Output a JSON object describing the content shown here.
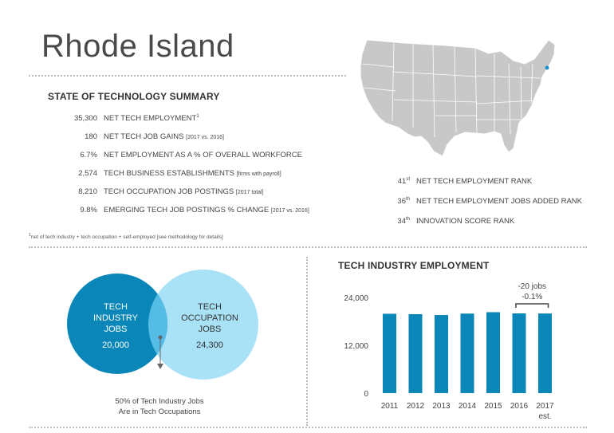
{
  "page": {
    "title": "Rhode Island"
  },
  "summary": {
    "heading": "STATE OF TECHNOLOGY SUMMARY",
    "rows": [
      {
        "value": "35,300",
        "label": "NET TECH EMPLOYMENT",
        "sup": "1",
        "note": ""
      },
      {
        "value": "180",
        "label": "NET TECH JOB GAINS",
        "sup": "",
        "note": "[2017 vs. 2016]"
      },
      {
        "value": "6.7%",
        "label": "NET EMPLOYMENT AS A % OF OVERALL WORKFORCE",
        "sup": "",
        "note": ""
      },
      {
        "value": "2,574",
        "label": "TECH BUSINESS ESTABLISHMENTS",
        "sup": "",
        "note": "[firms with payroll]"
      },
      {
        "value": "8,210",
        "label": "TECH OCCUPATION JOB POSTINGS",
        "sup": "",
        "note": "[2017 total]"
      },
      {
        "value": "9.8%",
        "label": "EMERGING TECH JOB POSTINGS % CHANGE",
        "sup": "",
        "note": "[2017 vs. 2016]"
      }
    ],
    "footnote_sup": "1",
    "footnote": "net of tech industry + tech occupation + self-employed [see methodology for details]"
  },
  "ranks": [
    {
      "num": "41",
      "suffix": "st",
      "label": "NET TECH EMPLOYMENT RANK"
    },
    {
      "num": "36",
      "suffix": "th",
      "label": "NET TECH EMPLOYMENT JOBS ADDED RANK"
    },
    {
      "num": "34",
      "suffix": "th",
      "label": "INNOVATION SCORE RANK"
    }
  ],
  "venn": {
    "left": {
      "line1": "TECH",
      "line2": "INDUSTRY",
      "line3": "JOBS",
      "value": "20,000",
      "color": "#0a86b8"
    },
    "right": {
      "line1": "TECH",
      "line2": "OCCUPATION",
      "line3": "JOBS",
      "value": "24,300",
      "color": "#a9e2f7"
    },
    "overlap_color": "#55bce6",
    "note_line1": "50% of Tech Industry Jobs",
    "note_line2": "Are in Tech Occupations"
  },
  "map": {
    "land_color": "#c8c8c8",
    "highlight_color": "#1f8fd0"
  },
  "chart_data": {
    "type": "bar",
    "title": "TECH INDUSTRY EMPLOYMENT",
    "categories": [
      "2011",
      "2012",
      "2013",
      "2014",
      "2015",
      "2016",
      "2017"
    ],
    "category_sublabels": [
      "",
      "",
      "",
      "",
      "",
      "",
      "est."
    ],
    "values": [
      19900,
      19800,
      19600,
      19950,
      20300,
      20000,
      19980
    ],
    "ylim": [
      0,
      26000
    ],
    "yticks": [
      0,
      12000,
      24000
    ],
    "ytick_labels": [
      "0",
      "12,000",
      "24,000"
    ],
    "bar_color": "#0a86b8",
    "annotation": {
      "line1": "-20 jobs",
      "line2": "-0.1%"
    }
  }
}
